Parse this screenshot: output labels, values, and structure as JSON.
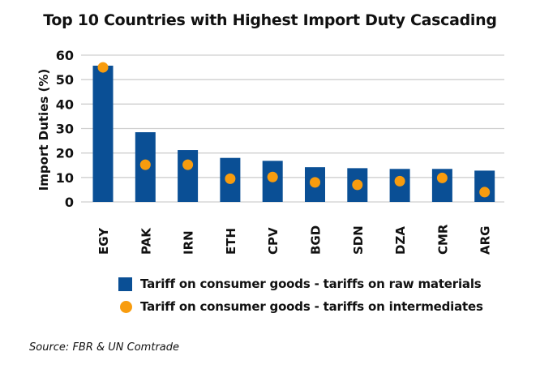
{
  "chart_data": {
    "type": "bar",
    "title": "Top 10 Countries with Highest Import Duty Cascading",
    "xlabel": "",
    "ylabel": "Import Duties (%)",
    "ylim": [
      0,
      60
    ],
    "yticks": [
      0,
      10,
      20,
      30,
      40,
      50,
      60
    ],
    "grid": true,
    "categories": [
      "EGY",
      "PAK",
      "IRN",
      "ETH",
      "CPV",
      "BGD",
      "SDN",
      "DZA",
      "CMR",
      "ARG"
    ],
    "series": [
      {
        "name": "Tariff on consumer goods - tariffs on raw materials",
        "type": "bar",
        "color": "#0a4f95",
        "values": [
          55.7,
          28.5,
          21.2,
          18.0,
          16.8,
          14.2,
          13.8,
          13.5,
          13.5,
          12.8
        ]
      },
      {
        "name": "Tariff on consumer goods - tariffs on intermediates",
        "type": "scatter",
        "color": "#f89c0e",
        "values": [
          55.0,
          15.2,
          15.2,
          9.5,
          10.2,
          8.0,
          7.0,
          8.5,
          9.8,
          4.0
        ]
      }
    ],
    "legend_position": "bottom",
    "source": "Source: FBR & UN Comtrade"
  }
}
